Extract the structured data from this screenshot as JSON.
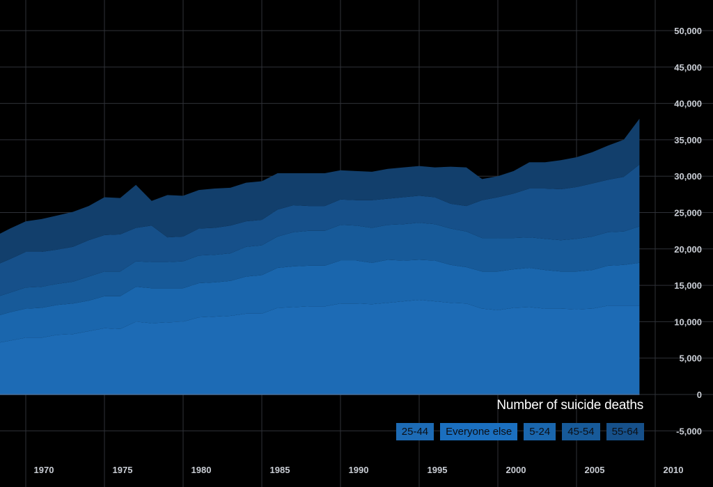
{
  "chart_data": {
    "type": "area",
    "stacked": true,
    "title": "Number of suicide deaths",
    "x": [
      1968,
      1969,
      1970,
      1971,
      1972,
      1973,
      1974,
      1975,
      1976,
      1977,
      1978,
      1979,
      1980,
      1981,
      1982,
      1983,
      1984,
      1985,
      1986,
      1987,
      1988,
      1989,
      1990,
      1991,
      1992,
      1993,
      1994,
      1995,
      1996,
      1997,
      1998,
      1999,
      2000,
      2001,
      2002,
      2003,
      2004,
      2005,
      2006,
      2007,
      2008,
      2009
    ],
    "xticks": [
      1970,
      1975,
      1980,
      1985,
      1990,
      1995,
      2000,
      2005,
      2010
    ],
    "xtick_labels": [
      "1970",
      "1975",
      "1980",
      "1985",
      "1990",
      "1995",
      "2000",
      "2005",
      "2010"
    ],
    "xlim": [
      1968,
      2012
    ],
    "ylim": [
      -7000,
      53000
    ],
    "yticks": [
      -5000,
      0,
      5000,
      10000,
      15000,
      20000,
      25000,
      30000,
      35000,
      40000,
      45000,
      50000
    ],
    "ytick_labels": [
      "-5,000",
      "0",
      "5,000",
      "10,000",
      "15,000",
      "20,000",
      "25,000",
      "30,000",
      "35,000",
      "40,000",
      "45,000",
      "50,000"
    ],
    "grid": true,
    "legend_position": "bottom-right",
    "series": [
      {
        "name": "25-44",
        "color": "#1d6bb5",
        "values": [
          7000,
          7400,
          7800,
          7800,
          8200,
          8300,
          8700,
          9100,
          9000,
          10000,
          9800,
          9900,
          10000,
          10600,
          10700,
          10800,
          11100,
          11100,
          11900,
          12000,
          12100,
          12100,
          12500,
          12500,
          12400,
          12600,
          12800,
          13000,
          12800,
          12600,
          12500,
          11800,
          11600,
          11900,
          12000,
          11800,
          11800,
          11700,
          11800,
          12200,
          12200,
          12200
        ]
      },
      {
        "name": "Everyone else",
        "color": "#1b6fbf",
        "values": [
          0,
          0,
          0,
          0,
          0,
          0,
          0,
          0,
          0,
          0,
          0,
          0,
          0,
          0,
          0,
          0,
          0,
          0,
          0,
          0,
          0,
          0,
          0,
          0,
          0,
          0,
          0,
          0,
          0,
          0,
          0,
          0,
          0,
          0,
          0,
          0,
          0,
          0,
          0,
          0,
          0,
          0
        ]
      },
      {
        "name": "5-24",
        "color": "#1a66ad",
        "values": [
          3700,
          3900,
          4000,
          4100,
          4100,
          4200,
          4200,
          4400,
          4500,
          4800,
          4800,
          4700,
          4600,
          4700,
          4700,
          4800,
          5100,
          5300,
          5500,
          5600,
          5600,
          5600,
          5900,
          5900,
          5700,
          5900,
          5600,
          5500,
          5600,
          5200,
          5000,
          5100,
          5300,
          5300,
          5400,
          5300,
          5100,
          5200,
          5300,
          5500,
          5600,
          5900
        ]
      },
      {
        "name": "45-54",
        "color": "#175a99",
        "values": [
          2600,
          2700,
          2900,
          2900,
          2900,
          3000,
          3300,
          3400,
          3400,
          3500,
          3600,
          3600,
          3700,
          3800,
          3800,
          3800,
          4100,
          4100,
          4300,
          4700,
          4800,
          4800,
          4900,
          4800,
          4800,
          4800,
          5000,
          5100,
          5000,
          5000,
          4900,
          4600,
          4600,
          4300,
          4200,
          4300,
          4300,
          4500,
          4600,
          4600,
          4600,
          5000
        ]
      },
      {
        "name": "55-64",
        "color": "#16508a",
        "values": [
          4400,
          4600,
          4900,
          4800,
          4700,
          4800,
          5000,
          5000,
          5100,
          4600,
          5000,
          3400,
          3400,
          3700,
          3700,
          3800,
          3500,
          3500,
          3700,
          3700,
          3400,
          3400,
          3500,
          3500,
          3800,
          3600,
          3700,
          3700,
          3700,
          3400,
          3500,
          5200,
          5600,
          6100,
          6700,
          6900,
          7000,
          7100,
          7300,
          7200,
          7500,
          8500
        ]
      },
      {
        "name": "",
        "color": "#123f6c",
        "values": [
          4000,
          4200,
          4200,
          4500,
          4700,
          4800,
          4700,
          5200,
          5000,
          5900,
          3400,
          5800,
          5600,
          5300,
          5400,
          5200,
          5300,
          5300,
          5000,
          4400,
          4500,
          4500,
          4000,
          4000,
          3900,
          4100,
          4100,
          4100,
          4100,
          5100,
          5300,
          2900,
          2900,
          3100,
          3600,
          3600,
          4000,
          4100,
          4300,
          4700,
          5100,
          6300
        ]
      }
    ]
  }
}
